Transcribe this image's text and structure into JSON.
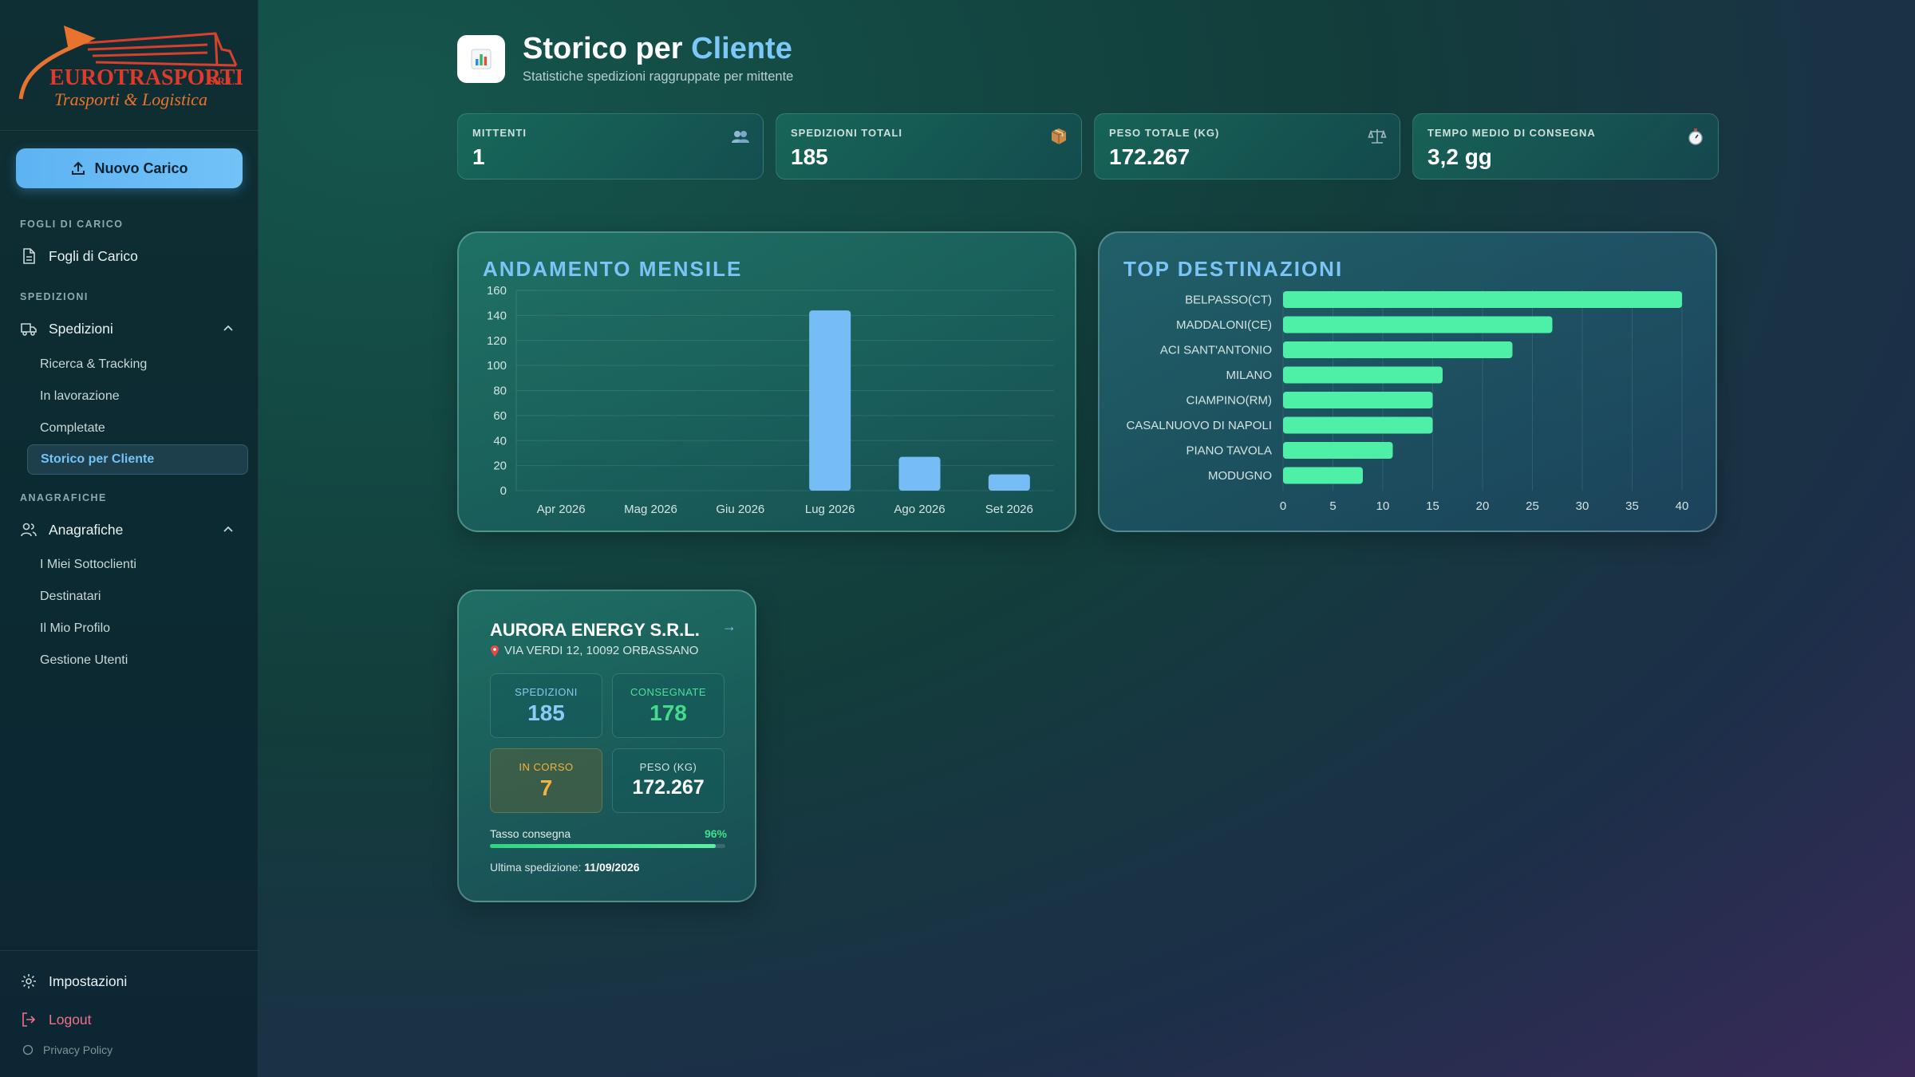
{
  "brand": {
    "name": "EUROTRASPORTI",
    "suffix": "S.R.L.",
    "tagline": "Trasporti & Logistica"
  },
  "sidebar": {
    "new_load_label": "Nuovo Carico",
    "sections": [
      {
        "label": "FOGLI DI CARICO"
      },
      {
        "label": "SPEDIZIONI"
      },
      {
        "label": "ANAGRAFICHE"
      }
    ],
    "fogli": {
      "label": "Fogli di Carico"
    },
    "spedizioni": {
      "label": "Spedizioni",
      "items": [
        {
          "label": "Ricerca & Tracking"
        },
        {
          "label": "In lavorazione"
        },
        {
          "label": "Completate"
        },
        {
          "label": "Storico per Cliente"
        }
      ]
    },
    "anagrafiche": {
      "label": "Anagrafiche",
      "items": [
        {
          "label": "I Miei Sottoclienti"
        },
        {
          "label": "Destinatari"
        },
        {
          "label": "Il Mio Profilo"
        },
        {
          "label": "Gestione Utenti"
        }
      ]
    },
    "settings_label": "Impostazioni",
    "logout_label": "Logout",
    "privacy_label": "Privacy Policy"
  },
  "header": {
    "title_main": "Storico per ",
    "title_accent": "Cliente",
    "subtitle": "Statistiche spedizioni raggruppate per mittente"
  },
  "stats": [
    {
      "label": "MITTENTI",
      "value": "1",
      "icon": "people-icon"
    },
    {
      "label": "SPEDIZIONI TOTALI",
      "value": "185",
      "icon": "package-icon"
    },
    {
      "label": "PESO TOTALE (KG)",
      "value": "172.267",
      "icon": "scale-icon"
    },
    {
      "label": "TEMPO MEDIO DI CONSEGNA",
      "value": "3,2 gg",
      "icon": "stopwatch-icon"
    }
  ],
  "panels": {
    "monthly_title": "ANDAMENTO MENSILE",
    "top_title": "TOP DESTINAZIONI"
  },
  "chart_data": [
    {
      "type": "bar",
      "title": "ANDAMENTO MENSILE",
      "categories": [
        "Apr 2026",
        "Mag 2026",
        "Giu 2026",
        "Lug 2026",
        "Ago 2026",
        "Set 2026"
      ],
      "values": [
        0,
        0,
        0,
        144,
        27,
        13
      ],
      "ylim": [
        0,
        160
      ],
      "yticks": [
        0,
        20,
        40,
        60,
        80,
        100,
        120,
        140,
        160
      ],
      "grid": true,
      "color": "#76bdf5"
    },
    {
      "type": "bar",
      "orientation": "horizontal",
      "title": "TOP DESTINAZIONI",
      "categories": [
        "BELPASSO(CT)",
        "MADDALONI(CE)",
        "ACI SANT'ANTONIO",
        "MILANO",
        "CIAMPINO(RM)",
        "CASALNUOVO DI NAPOLI",
        "PIANO TAVOLA",
        "MODUGNO"
      ],
      "values": [
        40,
        27,
        23,
        16,
        15,
        15,
        11,
        8
      ],
      "xlim": [
        0,
        40
      ],
      "xticks": [
        0,
        5,
        10,
        15,
        20,
        25,
        30,
        35,
        40
      ],
      "grid": true,
      "color": "#4ef0a8"
    }
  ],
  "client": {
    "name": "AURORA ENERGY S.R.L.",
    "address": "VIA VERDI 12, 10092 ORBASSANO",
    "spedizioni_label": "SPEDIZIONI",
    "spedizioni_value": "185",
    "consegnate_label": "CONSEGNATE",
    "consegnate_value": "178",
    "in_corso_label": "IN CORSO",
    "in_corso_value": "7",
    "peso_label": "PESO (KG)",
    "peso_value": "172.267",
    "rate_label": "Tasso consegna",
    "rate_pct_text": "96%",
    "rate_fraction": 0.96,
    "last_label": "Ultima spedizione:",
    "last_value": "11/09/2026"
  },
  "colors": {
    "accent_blue": "#7cc8f8",
    "green": "#3fe08c",
    "orange": "#f2b340",
    "logout": "#f07088"
  }
}
